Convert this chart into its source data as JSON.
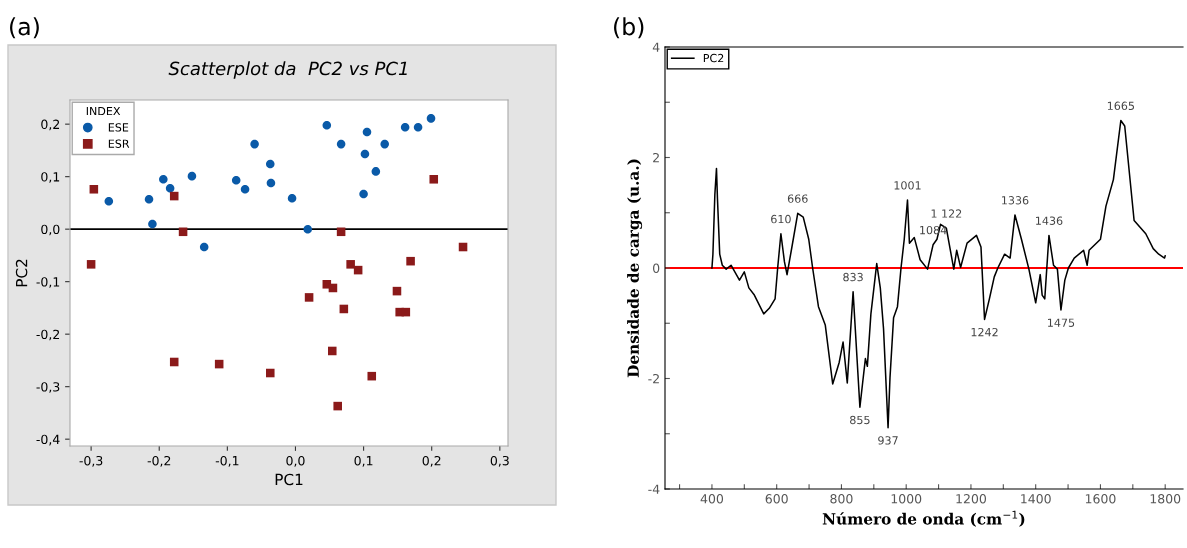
{
  "chart_data": [
    {
      "type": "scatter",
      "title": "Scatterplot da  PC2 vs PC1",
      "xlabel": "PC1",
      "ylabel": "PC2",
      "legend_title": "INDEX",
      "legend": "top left",
      "grid": false,
      "annotations": [
        "(a)"
      ],
      "xlim": [
        -0.331,
        0.312
      ],
      "xticks": [
        {
          "value": -0.3,
          "label": "-0,3"
        },
        {
          "value": -0.2,
          "label": "-0,2"
        },
        {
          "value": -0.1,
          "label": "-0,1"
        },
        {
          "value": 0.0,
          "label": "0,0"
        },
        {
          "value": 0.1,
          "label": "0,1"
        },
        {
          "value": 0.2,
          "label": "0,2"
        },
        {
          "value": 0.3,
          "label": "0,3"
        }
      ],
      "ylim": [
        -0.413,
        0.246
      ],
      "yticks": [
        {
          "value": -0.4,
          "label": "-0,4"
        },
        {
          "value": -0.3,
          "label": "-0,3"
        },
        {
          "value": -0.2,
          "label": "-0,2"
        },
        {
          "value": -0.1,
          "label": "-0,1"
        },
        {
          "value": 0.0,
          "label": "0,0"
        },
        {
          "value": 0.1,
          "label": "0,1"
        },
        {
          "value": 0.2,
          "label": "0,2"
        }
      ],
      "ref_lines": [
        {
          "axis": "y",
          "value": 0,
          "color": "#000000"
        }
      ],
      "series": [
        {
          "name": "ESE",
          "color": "#0a5aa8",
          "marker": "circle",
          "x": [
            -0.274,
            -0.21,
            -0.215,
            -0.194,
            -0.184,
            -0.152,
            -0.134,
            -0.087,
            -0.074,
            -0.06,
            -0.037,
            -0.036,
            -0.005,
            0.018,
            0.046,
            0.067,
            0.1,
            0.102,
            0.105,
            0.118,
            0.131,
            0.161,
            0.18,
            0.199
          ],
          "values": [
            0.053,
            0.01,
            0.057,
            0.095,
            0.078,
            0.101,
            -0.034,
            0.093,
            0.076,
            0.162,
            0.124,
            0.088,
            0.059,
            0.0,
            0.198,
            0.162,
            0.067,
            0.143,
            0.185,
            0.11,
            0.162,
            0.194,
            0.194,
            0.211
          ]
        },
        {
          "name": "ESR",
          "color": "#8b1a1a",
          "marker": "square",
          "x": [
            -0.296,
            -0.3,
            -0.178,
            -0.165,
            -0.178,
            -0.112,
            -0.037,
            0.02,
            0.046,
            0.055,
            0.067,
            0.071,
            0.081,
            0.092,
            0.054,
            0.062,
            0.112,
            0.149,
            0.153,
            0.162,
            0.169,
            0.203,
            0.246
          ],
          "values": [
            0.076,
            -0.067,
            0.063,
            -0.005,
            -0.253,
            -0.257,
            -0.274,
            -0.13,
            -0.105,
            -0.112,
            -0.005,
            -0.152,
            -0.067,
            -0.078,
            -0.232,
            -0.337,
            -0.28,
            -0.118,
            -0.158,
            -0.158,
            -0.061,
            0.095,
            -0.034
          ]
        }
      ]
    },
    {
      "type": "line",
      "xlabel": "Número de onda (cm$^{−1}$)",
      "ylabel": "Densidade de carga (u.a.)",
      "legend": "top left",
      "grid": false,
      "xlim": [
        255,
        1855
      ],
      "xticks": [
        {
          "value": 300,
          "label": null
        },
        400,
        {
          "value": 500,
          "label": null
        },
        600,
        {
          "value": 700,
          "label": null
        },
        800,
        {
          "value": 900,
          "label": null
        },
        1000,
        {
          "value": 1100,
          "label": null
        },
        1200,
        {
          "value": 1300,
          "label": null
        },
        1400,
        {
          "value": 1500,
          "label": null
        },
        1600,
        {
          "value": 1700,
          "label": null
        },
        1800
      ],
      "ylim": [
        -4,
        4
      ],
      "yticks": [
        -4,
        {
          "value": -3,
          "label": null
        },
        -2,
        {
          "value": -1,
          "label": null
        },
        0,
        {
          "value": 1,
          "label": null
        },
        2,
        {
          "value": 3,
          "label": null
        },
        4
      ],
      "ref_lines": [
        {
          "axis": "y",
          "value": 0,
          "color": "#ff0000"
        }
      ],
      "annotations": [
        "(b)",
        {
          "text": "610",
          "x": 613,
          "y": 0.62
        },
        {
          "text": "666",
          "x": 665,
          "y": 0.99
        },
        {
          "text": "833",
          "x": 836,
          "y": -0.43
        },
        {
          "text": "855",
          "x": 857,
          "y": -2.52
        },
        {
          "text": "937",
          "x": 944,
          "y": -2.89
        },
        {
          "text": "1001",
          "x": 1004,
          "y": 1.23
        },
        {
          "text": "1084",
          "x": 1083,
          "y": 0.42
        },
        {
          "text": "1 122",
          "x": 1124,
          "y": 0.72
        },
        {
          "text": "1242",
          "x": 1242,
          "y": -0.93
        },
        {
          "text": "1336",
          "x": 1336,
          "y": 0.96
        },
        {
          "text": "1436",
          "x": 1441,
          "y": 0.59
        },
        {
          "text": "1475",
          "x": 1478,
          "y": -0.76
        },
        {
          "text": "1665",
          "x": 1663,
          "y": 2.67
        }
      ],
      "series": [
        {
          "name": "PC2",
          "color": "#000000",
          "marker": "none",
          "line_style": "solid",
          "x": [
            400,
            403,
            409,
            414,
            417,
            424,
            432,
            444,
            459,
            485,
            500,
            514,
            531,
            560,
            577,
            595,
            603,
            613,
            624,
            632,
            647,
            665,
            682,
            699,
            711,
            729,
            750,
            773,
            793,
            805,
            818,
            836,
            857,
            866,
            874,
            880,
            891,
            909,
            920,
            930,
            944,
            950,
            961,
            973,
            984,
            994,
            1004,
            1010,
            1025,
            1043,
            1066,
            1083,
            1095,
            1106,
            1124,
            1147,
            1156,
            1168,
            1188,
            1217,
            1231,
            1242,
            1257,
            1272,
            1283,
            1304,
            1321,
            1336,
            1356,
            1379,
            1400,
            1414,
            1420,
            1428,
            1441,
            1455,
            1467,
            1478,
            1490,
            1501,
            1519,
            1548,
            1559,
            1565,
            1600,
            1617,
            1640,
            1663,
            1675,
            1704,
            1740,
            1763,
            1780,
            1798,
            1800
          ],
          "values": [
            0.0,
            0.25,
            1.33,
            1.8,
            1.26,
            0.25,
            0.05,
            -0.02,
            0.05,
            -0.22,
            -0.07,
            -0.36,
            -0.49,
            -0.83,
            -0.73,
            -0.56,
            0.0,
            0.62,
            0.11,
            -0.12,
            0.38,
            0.99,
            0.92,
            0.52,
            0.0,
            -0.7,
            -1.03,
            -2.1,
            -1.71,
            -1.34,
            -2.08,
            -0.43,
            -2.52,
            -2.05,
            -1.64,
            -1.78,
            -0.83,
            0.08,
            -0.36,
            -1.1,
            -2.89,
            -1.98,
            -0.9,
            -0.7,
            0.0,
            0.52,
            1.23,
            0.45,
            0.55,
            0.15,
            -0.02,
            0.42,
            0.52,
            0.79,
            0.72,
            -0.02,
            0.32,
            0.01,
            0.45,
            0.59,
            0.38,
            -0.93,
            -0.56,
            -0.16,
            0.0,
            0.25,
            0.18,
            0.96,
            0.52,
            -0.02,
            -0.63,
            -0.12,
            -0.49,
            -0.56,
            0.59,
            0.05,
            -0.02,
            -0.76,
            -0.22,
            0.0,
            0.18,
            0.32,
            0.05,
            0.32,
            0.52,
            1.12,
            1.6,
            2.67,
            2.57,
            0.86,
            0.62,
            0.35,
            0.25,
            0.18,
            0.22
          ]
        }
      ]
    }
  ]
}
